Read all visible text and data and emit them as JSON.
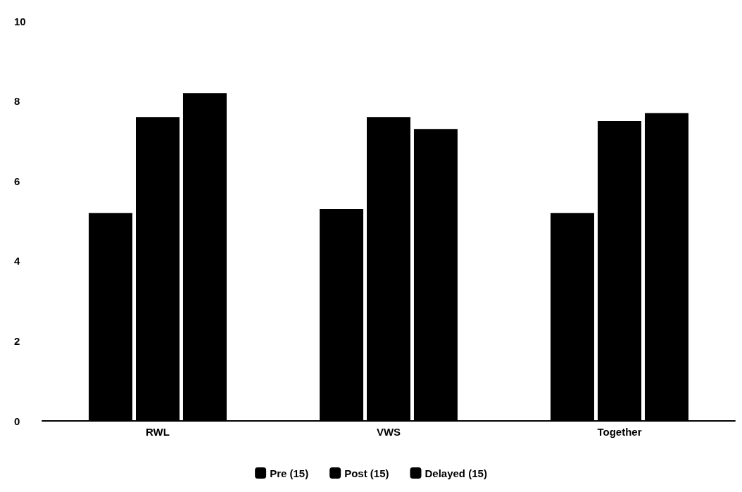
{
  "chart_data": {
    "type": "bar",
    "categories": [
      "RWL",
      "VWS",
      "Together"
    ],
    "series": [
      {
        "name": "Pre (15)",
        "color": "#000000",
        "values": [
          5.2,
          5.3,
          5.2
        ]
      },
      {
        "name": "Post (15)",
        "color": "#000000",
        "values": [
          7.6,
          7.6,
          7.5
        ]
      },
      {
        "name": "Delayed (15)",
        "color": "#000000",
        "values": [
          8.2,
          7.3,
          7.7
        ]
      }
    ],
    "ylim": [
      0,
      10
    ],
    "yticks": [
      0,
      2,
      4,
      6,
      8,
      10
    ],
    "grid": false,
    "legend": "bottom"
  }
}
